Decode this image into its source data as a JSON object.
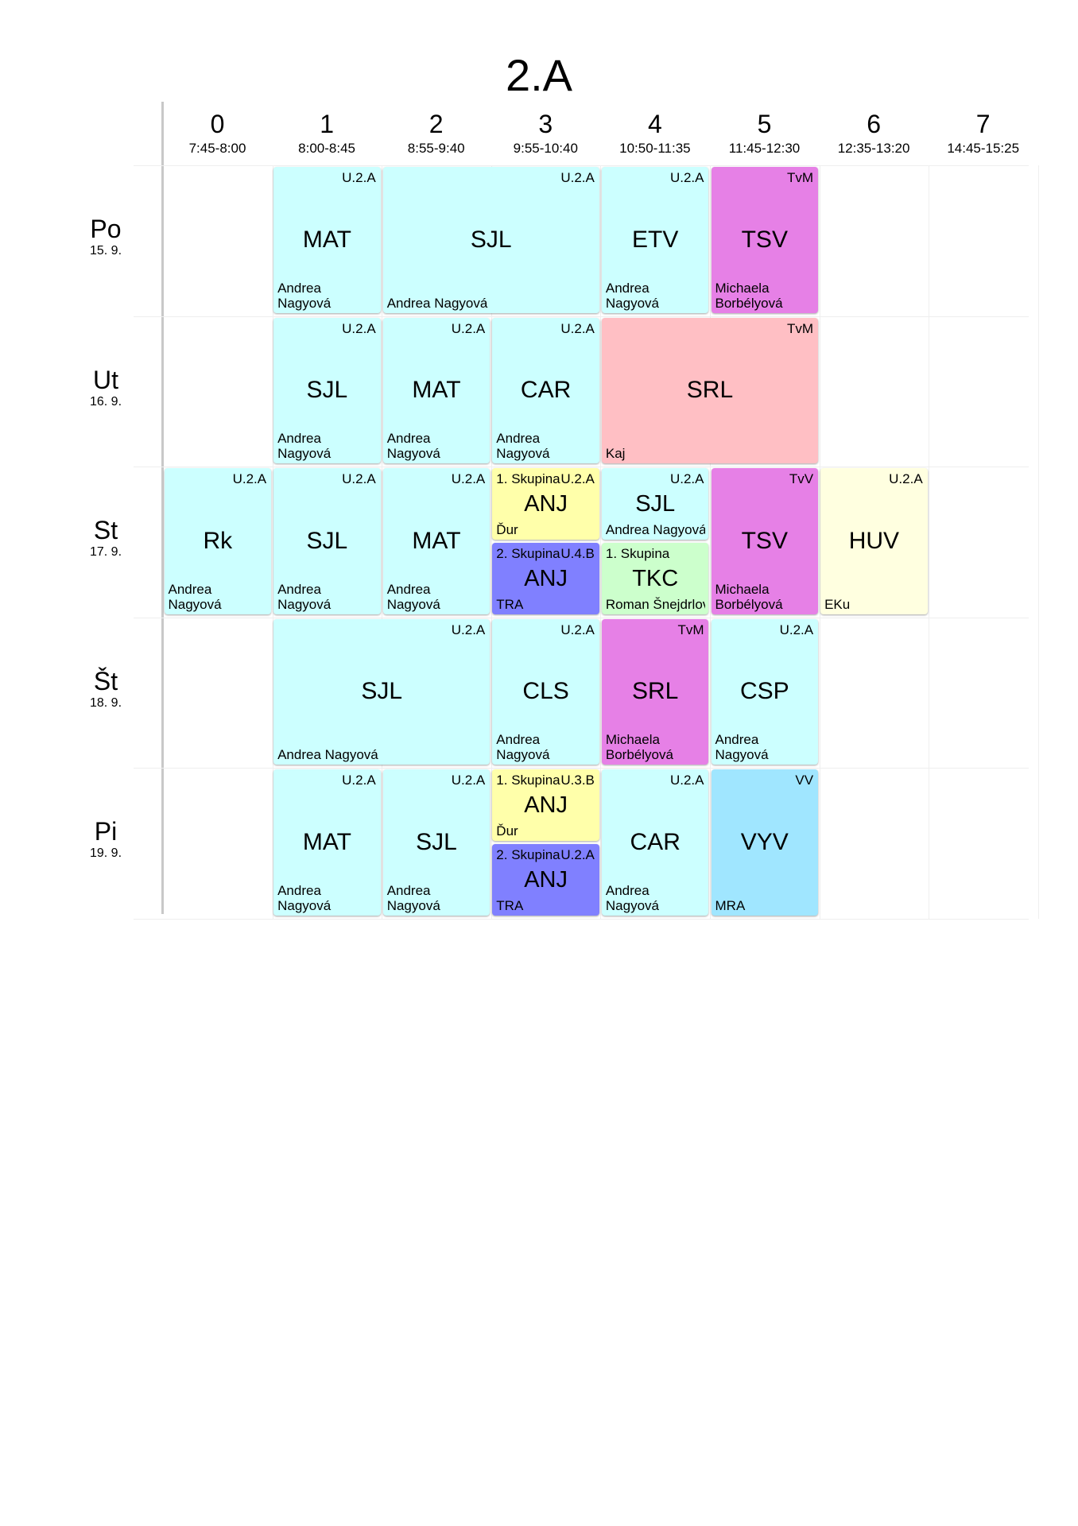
{
  "title": "2.A",
  "periods": [
    {
      "num": "0",
      "time": "7:45-8:00"
    },
    {
      "num": "1",
      "time": "8:00-8:45"
    },
    {
      "num": "2",
      "time": "8:55-9:40"
    },
    {
      "num": "3",
      "time": "9:55-10:40"
    },
    {
      "num": "4",
      "time": "10:50-11:35"
    },
    {
      "num": "5",
      "time": "11:45-12:30"
    },
    {
      "num": "6",
      "time": "12:35-13:20"
    },
    {
      "num": "7",
      "time": "14:45-15:25"
    }
  ],
  "days": [
    {
      "name": "Po",
      "date": "15. 9."
    },
    {
      "name": "Ut",
      "date": "16. 9."
    },
    {
      "name": "St",
      "date": "17. 9."
    },
    {
      "name": "Št",
      "date": "18. 9."
    },
    {
      "name": "Pi",
      "date": "19. 9."
    }
  ],
  "colors": {
    "light_cyan": "#ccffff",
    "pink": "#ffbfc4",
    "magenta": "#e680e6",
    "yellow": "#ffffaa",
    "blue": "#8080ff",
    "green": "#ccffcc",
    "cream": "#ffffe0",
    "sky": "#a0e6ff"
  },
  "lessons": [
    {
      "day": 0,
      "period": 1,
      "span": 1,
      "subject": "MAT",
      "room": "U.2.A",
      "teacher": "Andrea Nagyová",
      "color": "#ccffff"
    },
    {
      "day": 0,
      "period": 2,
      "span": 2,
      "subject": "SJL",
      "room": "U.2.A",
      "teacher": "Andrea Nagyová",
      "color": "#ccffff"
    },
    {
      "day": 0,
      "period": 4,
      "span": 1,
      "subject": "ETV",
      "room": "U.2.A",
      "teacher": "Andrea Nagyová",
      "color": "#ccffff"
    },
    {
      "day": 0,
      "period": 5,
      "span": 1,
      "subject": "TSV",
      "room": "TvM",
      "teacher": "Michaela Borbélyová",
      "color": "#e680e6"
    },
    {
      "day": 1,
      "period": 1,
      "span": 1,
      "subject": "SJL",
      "room": "U.2.A",
      "teacher": "Andrea Nagyová",
      "color": "#ccffff"
    },
    {
      "day": 1,
      "period": 2,
      "span": 1,
      "subject": "MAT",
      "room": "U.2.A",
      "teacher": "Andrea Nagyová",
      "color": "#ccffff"
    },
    {
      "day": 1,
      "period": 3,
      "span": 1,
      "subject": "CAR",
      "room": "U.2.A",
      "teacher": "Andrea Nagyová",
      "color": "#ccffff"
    },
    {
      "day": 1,
      "period": 4,
      "span": 2,
      "subject": "SRL",
      "room": "TvM",
      "teacher": "Kaj",
      "color": "#ffbfc4"
    },
    {
      "day": 2,
      "period": 0,
      "span": 1,
      "subject": "Rk",
      "room": "U.2.A",
      "teacher": "Andrea Nagyová",
      "color": "#ccffff"
    },
    {
      "day": 2,
      "period": 1,
      "span": 1,
      "subject": "SJL",
      "room": "U.2.A",
      "teacher": "Andrea Nagyová",
      "color": "#ccffff"
    },
    {
      "day": 2,
      "period": 2,
      "span": 1,
      "subject": "MAT",
      "room": "U.2.A",
      "teacher": "Andrea Nagyová",
      "color": "#ccffff"
    },
    {
      "day": 2,
      "period": 3,
      "span": 1,
      "half": "top",
      "group": "1. Skupina",
      "subject": "ANJ",
      "room": "U.2.A",
      "teacher": "Ďur",
      "color": "#ffffaa"
    },
    {
      "day": 2,
      "period": 3,
      "span": 1,
      "half": "bottom",
      "group": "2. Skupina",
      "subject": "ANJ",
      "room": "U.4.B",
      "teacher": "TRA",
      "color": "#8080ff"
    },
    {
      "day": 2,
      "period": 4,
      "span": 1,
      "half": "top",
      "subject": "SJL",
      "room": "U.2.A",
      "teacher": "Andrea Nagyová",
      "color": "#ccffff"
    },
    {
      "day": 2,
      "period": 4,
      "span": 1,
      "half": "bottom",
      "group": "1. Skupina",
      "subject": "TKC",
      "teacher": "Roman Šnejdrlová",
      "color": "#ccffcc"
    },
    {
      "day": 2,
      "period": 5,
      "span": 1,
      "subject": "TSV",
      "room": "TvV",
      "teacher": "Michaela Borbélyová",
      "color": "#e680e6"
    },
    {
      "day": 2,
      "period": 6,
      "span": 1,
      "subject": "HUV",
      "room": "U.2.A",
      "teacher": "EKu",
      "color": "#ffffe0"
    },
    {
      "day": 3,
      "period": 1,
      "span": 2,
      "subject": "SJL",
      "room": "U.2.A",
      "teacher": "Andrea Nagyová",
      "color": "#ccffff"
    },
    {
      "day": 3,
      "period": 3,
      "span": 1,
      "subject": "CLS",
      "room": "U.2.A",
      "teacher": "Andrea Nagyová",
      "color": "#ccffff"
    },
    {
      "day": 3,
      "period": 4,
      "span": 1,
      "subject": "SRL",
      "room": "TvM",
      "teacher": "Michaela Borbélyová",
      "color": "#e680e6"
    },
    {
      "day": 3,
      "period": 5,
      "span": 1,
      "subject": "CSP",
      "room": "U.2.A",
      "teacher": "Andrea Nagyová",
      "color": "#ccffff"
    },
    {
      "day": 4,
      "period": 1,
      "span": 1,
      "subject": "MAT",
      "room": "U.2.A",
      "teacher": "Andrea Nagyová",
      "color": "#ccffff"
    },
    {
      "day": 4,
      "period": 2,
      "span": 1,
      "subject": "SJL",
      "room": "U.2.A",
      "teacher": "Andrea Nagyová",
      "color": "#ccffff"
    },
    {
      "day": 4,
      "period": 3,
      "span": 1,
      "half": "top",
      "group": "1. Skupina",
      "subject": "ANJ",
      "room": "U.3.B",
      "teacher": "Ďur",
      "color": "#ffffaa"
    },
    {
      "day": 4,
      "period": 3,
      "span": 1,
      "half": "bottom",
      "group": "2. Skupina",
      "subject": "ANJ",
      "room": "U.2.A",
      "teacher": "TRA",
      "color": "#8080ff"
    },
    {
      "day": 4,
      "period": 4,
      "span": 1,
      "subject": "CAR",
      "room": "U.2.A",
      "teacher": "Andrea Nagyová",
      "color": "#ccffff"
    },
    {
      "day": 4,
      "period": 5,
      "span": 1,
      "subject": "VYV",
      "room": "VV",
      "teacher": "MRA",
      "color": "#a0e6ff"
    }
  ]
}
